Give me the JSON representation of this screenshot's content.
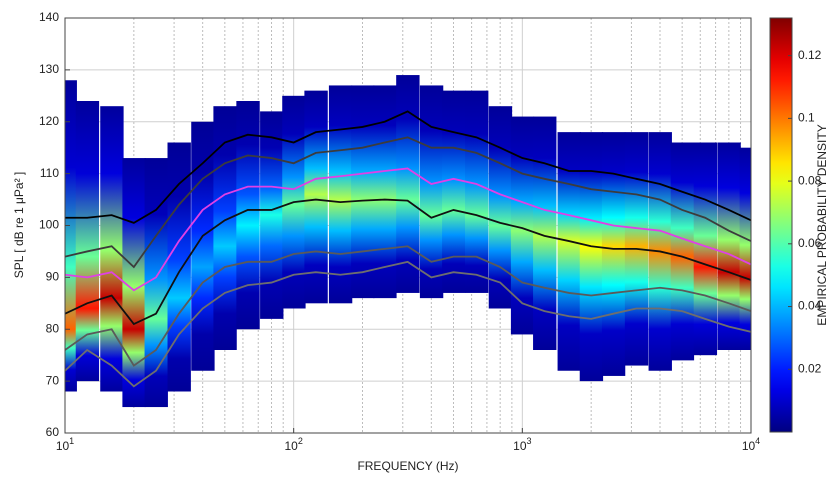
{
  "chart_data": {
    "type": "spectral-density",
    "xlabel": "FREQUENCY (Hz)",
    "ylabel": "SPL [ dB re 1 μPa² ]",
    "colorbar_label": "EMPIRICAL PROBABILITY DENSITY",
    "log_x": true,
    "grid": true,
    "colormap": "jet",
    "xlim": [
      10,
      10000
    ],
    "ylim": [
      60,
      140
    ],
    "zlim": [
      0,
      0.132
    ],
    "xticks": [
      {
        "value": 10,
        "label": "10",
        "exponent": "1"
      },
      {
        "value": 100,
        "label": "10",
        "exponent": "2"
      },
      {
        "value": 1000,
        "label": "10",
        "exponent": "3"
      },
      {
        "value": 10000,
        "label": "10",
        "exponent": "4"
      }
    ],
    "yticks": [
      60,
      70,
      80,
      90,
      100,
      110,
      120,
      130,
      140
    ],
    "zticks": [
      0.02,
      0.04,
      0.06,
      0.08,
      0.1,
      0.12
    ],
    "x": [
      10,
      12.5,
      16,
      20,
      25,
      31.5,
      40,
      50,
      63,
      80,
      100,
      125,
      160,
      200,
      250,
      315,
      400,
      500,
      630,
      800,
      1000,
      1250,
      1600,
      2000,
      2500,
      3150,
      4000,
      5000,
      6300,
      8000,
      10000
    ],
    "density": {
      "min": [
        68,
        70,
        68,
        65,
        65,
        68,
        72,
        76,
        80,
        82,
        84,
        85,
        85,
        86,
        86,
        87,
        86,
        87,
        87,
        84,
        79,
        76,
        72,
        70,
        71,
        73,
        72,
        74,
        75,
        76,
        76
      ],
      "max": [
        128,
        124,
        123,
        113,
        113,
        116,
        120,
        123,
        124,
        122,
        125,
        126,
        127,
        127,
        127,
        129,
        127,
        126,
        126,
        123,
        121,
        121,
        118,
        118,
        118,
        118,
        118,
        116,
        116,
        116,
        115
      ],
      "mode": [
        80,
        84,
        86,
        80,
        82,
        86,
        92,
        96,
        100,
        102,
        104,
        106,
        105,
        105,
        105,
        105,
        102,
        103,
        102,
        100,
        99,
        98,
        97,
        96,
        96,
        96,
        95,
        94,
        92,
        91,
        90
      ],
      "peak": [
        0.1,
        0.11,
        0.12,
        0.12,
        0.06,
        0.04,
        0.035,
        0.04,
        0.045,
        0.05,
        0.06,
        0.07,
        0.07,
        0.065,
        0.065,
        0.06,
        0.06,
        0.06,
        0.06,
        0.06,
        0.065,
        0.07,
        0.075,
        0.08,
        0.085,
        0.09,
        0.095,
        0.1,
        0.11,
        0.12,
        0.12
      ]
    },
    "series": [
      {
        "color": "#000000",
        "values": [
          101.5,
          101.5,
          102,
          100.5,
          103,
          108,
          112,
          116,
          117.5,
          117,
          116,
          118,
          118.5,
          119,
          120,
          122,
          119,
          118,
          117,
          115,
          113,
          112,
          110.5,
          110.5,
          110,
          109,
          108,
          106.5,
          105,
          103,
          101
        ]
      },
      {
        "color": "#3c3c3c",
        "values": [
          94,
          95,
          96,
          92,
          98,
          104,
          109,
          112,
          113.5,
          113,
          112,
          114,
          114.5,
          115,
          116,
          117,
          115,
          115,
          114,
          112,
          110,
          109,
          108,
          107,
          106.5,
          106,
          105,
          103,
          101.5,
          99,
          97
        ]
      },
      {
        "color": "#e040e6",
        "values": [
          90.5,
          90,
          91,
          87.5,
          90,
          97,
          103,
          106,
          107.5,
          107.5,
          107,
          109,
          109.5,
          110,
          110.5,
          111,
          108,
          109,
          108,
          106,
          104.5,
          103,
          102,
          101,
          100,
          99.5,
          99,
          97.5,
          96,
          94.5,
          92.5
        ]
      },
      {
        "color": "#111111",
        "values": [
          83,
          85,
          86.5,
          81,
          83,
          91,
          98,
          101,
          103,
          103,
          104.5,
          105,
          104.5,
          104.8,
          105,
          104.8,
          101.5,
          103,
          102,
          100.5,
          99.5,
          98,
          97,
          96,
          95.5,
          95.5,
          95,
          94,
          92.5,
          91,
          89.5
        ]
      },
      {
        "color": "#5a5a5a",
        "values": [
          76,
          79,
          80,
          73,
          76,
          83,
          89,
          92,
          93,
          93,
          94.5,
          95,
          94.5,
          95,
          95.5,
          96,
          93,
          94,
          94,
          92,
          89,
          88,
          87,
          86.5,
          87,
          87.5,
          88,
          87.5,
          86.5,
          85,
          83.5
        ]
      },
      {
        "color": "#6e6e6e",
        "values": [
          72,
          76,
          73,
          69,
          72,
          79,
          84,
          87,
          88.5,
          89,
          90.5,
          91,
          90.5,
          91,
          92,
          93,
          90,
          91,
          90.5,
          89,
          85,
          83.5,
          82.5,
          82,
          83,
          84,
          84,
          83.5,
          82,
          80.5,
          79.5
        ]
      }
    ]
  }
}
